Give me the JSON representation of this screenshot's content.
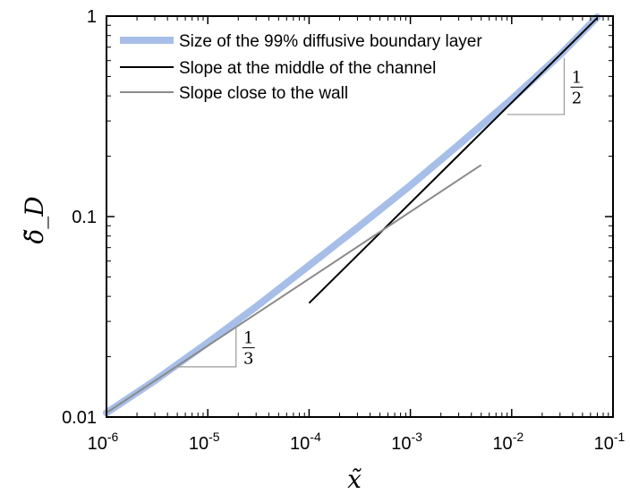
{
  "chart_data": {
    "type": "line",
    "xscale": "log",
    "yscale": "log",
    "xlim": [
      1e-06,
      0.1
    ],
    "ylim": [
      0.01,
      1
    ],
    "xlabel": "x̃",
    "ylabel": "δ̃_D",
    "x_ticks": [
      {
        "value": 1e-06,
        "base": "10",
        "exp": "-6"
      },
      {
        "value": 1e-05,
        "base": "10",
        "exp": "-5"
      },
      {
        "value": 0.0001,
        "base": "10",
        "exp": "-4"
      },
      {
        "value": 0.001,
        "base": "10",
        "exp": "-3"
      },
      {
        "value": 0.01,
        "base": "10",
        "exp": "-2"
      },
      {
        "value": 0.1,
        "base": "10",
        "exp": "-1"
      }
    ],
    "y_ticks": [
      {
        "value": 0.01,
        "label": "0.01"
      },
      {
        "value": 0.1,
        "label": "0.1"
      },
      {
        "value": 1,
        "label": "1"
      }
    ],
    "grid": false,
    "legend_position": "top-left",
    "series": [
      {
        "name": "Size of the 99% diffusive boundary layer",
        "color": "#a7bfe8",
        "x": [
          1e-06,
          3e-06,
          1e-05,
          3e-05,
          0.0001,
          0.0003,
          0.001,
          0.003,
          0.01,
          0.03,
          0.07
        ],
        "y": [
          0.0105,
          0.0152,
          0.0235,
          0.0355,
          0.057,
          0.088,
          0.143,
          0.228,
          0.385,
          0.64,
          0.99
        ]
      },
      {
        "name": "Slope at the middle of the channel",
        "color": "#000000",
        "x": [
          0.0001,
          0.07
        ],
        "y": [
          0.037,
          0.98
        ]
      },
      {
        "name": "Slope close to the wall",
        "color": "#8a8a8a",
        "x": [
          1e-06,
          0.005
        ],
        "y": [
          0.0105,
          0.181
        ]
      }
    ],
    "annotations": [
      {
        "type": "slope-triangle",
        "num": "1",
        "den": "3",
        "x_start": 4.8e-06,
        "x_end": 1.9e-05,
        "y_at_start": 0.0178
      },
      {
        "type": "slope-triangle",
        "num": "1",
        "den": "2",
        "x_start": 0.009,
        "x_end": 0.033,
        "y_at_start": 0.323
      }
    ]
  }
}
